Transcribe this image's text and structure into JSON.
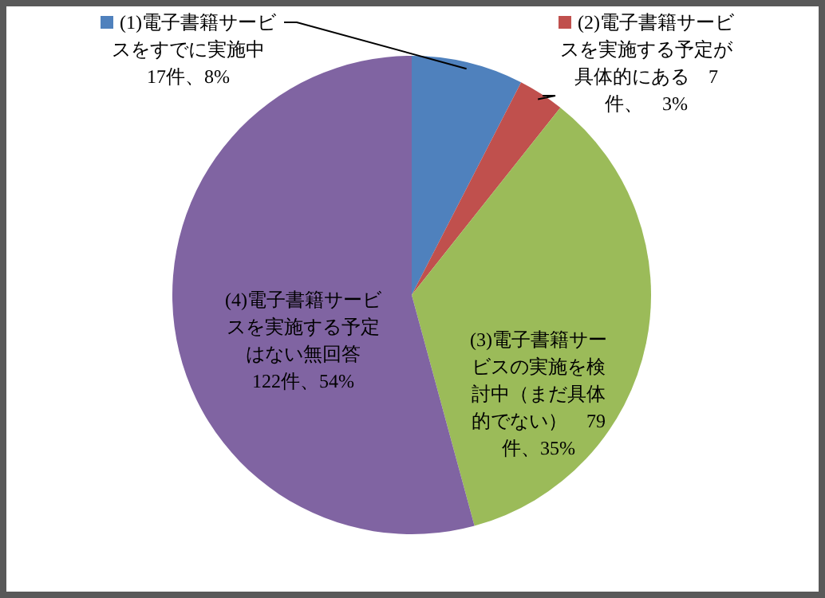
{
  "chart_data": {
    "type": "pie",
    "categories": [
      "(1)電子書籍サービスをすでに実施中",
      "(2)電子書籍サービスを実施する予定が具体的にある",
      "(3)電子書籍サービスの実施を検討中（まだ具体的でない）",
      "(4)電子書籍サービスを実施する予定はない無回答"
    ],
    "values": [
      17,
      7,
      79,
      122
    ],
    "colors": [
      "#4f81bd",
      "#c0504d",
      "#9bbb59",
      "#8064a2"
    ],
    "value_labels": [
      "17件、8%",
      "7件、　3%",
      "79件、35%",
      "122件、54%"
    ],
    "legend": "top"
  }
}
